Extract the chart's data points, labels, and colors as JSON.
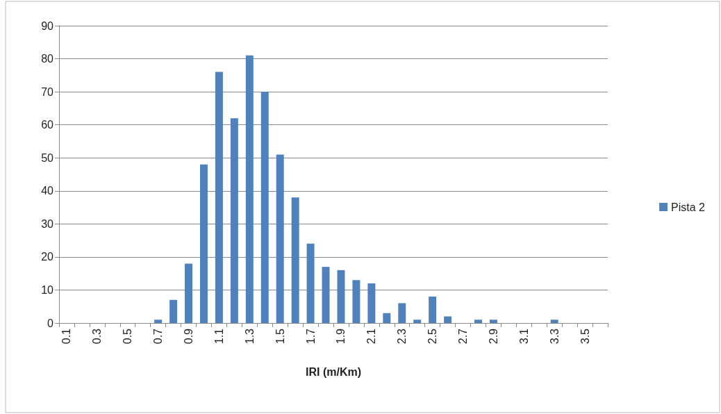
{
  "chart_data": {
    "type": "bar",
    "xlabel": "IRI (m/Km)",
    "categories": [
      "0.1",
      null,
      "0.3",
      null,
      "0.5",
      null,
      "0.7",
      null,
      "0.9",
      null,
      "1.1",
      null,
      "1.3",
      null,
      "1.5",
      null,
      "1.7",
      null,
      "1.9",
      null,
      "2.1",
      null,
      "2.3",
      null,
      "2.5",
      null,
      "2.7",
      null,
      "2.9",
      null,
      "3.1",
      null,
      "3.3",
      null,
      "3.5",
      null
    ],
    "series": [
      {
        "name": "Pista 2",
        "color": "#4f81bd",
        "values": [
          0,
          0,
          0,
          0,
          0,
          0,
          1,
          7,
          18,
          48,
          76,
          62,
          81,
          70,
          51,
          38,
          24,
          17,
          16,
          13,
          12,
          3,
          6,
          1,
          8,
          2,
          0,
          1,
          1,
          0,
          0,
          0,
          1,
          0,
          0,
          0
        ]
      }
    ],
    "ylim": [
      0,
      90
    ],
    "yticks": [
      0,
      10,
      20,
      30,
      40,
      50,
      60,
      70,
      80,
      90
    ],
    "grid": "y",
    "legend": "right"
  }
}
